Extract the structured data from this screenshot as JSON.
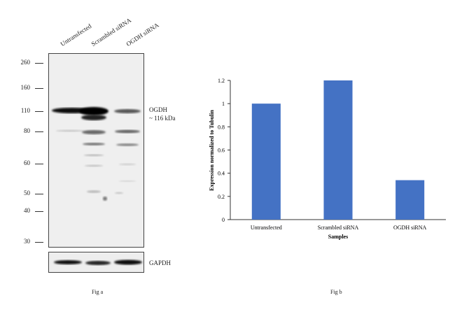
{
  "figure_a": {
    "lanes": [
      "Untransfected",
      "Scrambled siRNA",
      "OGDH siRNA"
    ],
    "mw_markers": [
      "260",
      "160",
      "110",
      "80",
      "60",
      "50",
      "40",
      "30"
    ],
    "target_label": "OGDH",
    "target_size": "~ 116 kDa",
    "loading_control": "GAPDH",
    "caption": "Fig a"
  },
  "figure_b": {
    "caption": "Fig b"
  },
  "chart_data": {
    "type": "bar",
    "categories": [
      "Untransfected",
      "Scrambled siRNA",
      "OGDH siRNA"
    ],
    "values": [
      1.0,
      1.2,
      0.34
    ],
    "title": "",
    "xlabel": "Samples",
    "ylabel": "Expression normalized to Tubulin",
    "ylim": [
      0,
      1.2
    ],
    "yticks": [
      "0",
      "0.2",
      "0.4",
      "0.6",
      "0.8",
      "1",
      "1.2"
    ],
    "grid": false,
    "bar_color": "#4472c4"
  }
}
